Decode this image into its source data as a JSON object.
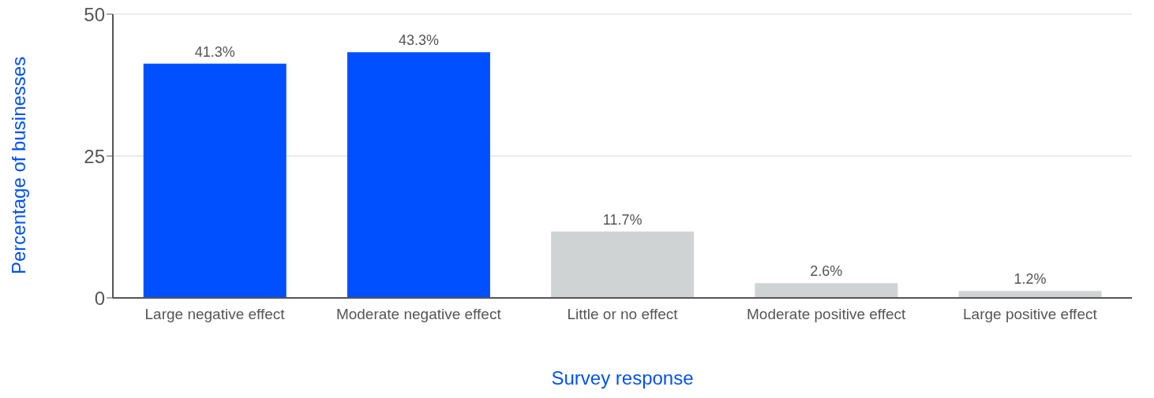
{
  "chart_data": {
    "type": "bar",
    "xlabel": "Survey response",
    "ylabel": "Percentage of businesses",
    "categories": [
      "Large negative effect",
      "Moderate negative effect",
      "Little or no effect",
      "Moderate positive effect",
      "Large positive effect"
    ],
    "values": [
      41.3,
      43.3,
      11.7,
      2.6,
      1.2
    ],
    "value_labels": [
      "41.3%",
      "43.3%",
      "11.7%",
      "2.6%",
      "1.2%"
    ],
    "colors": [
      "#0050ff",
      "#0050ff",
      "#d0d3d4",
      "#d0d3d4",
      "#d0d3d4"
    ],
    "ylim": [
      0,
      50
    ],
    "yticks": [
      0,
      25,
      50
    ],
    "grid": "y"
  }
}
